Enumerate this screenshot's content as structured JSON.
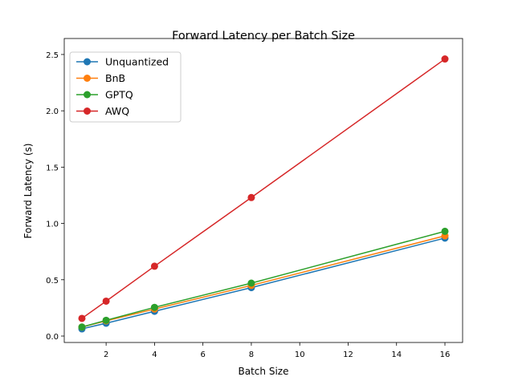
{
  "chart_data": {
    "type": "line",
    "title": "Forward Latency per Batch Size",
    "xlabel": "Batch Size",
    "ylabel": "Forward Latency (s)",
    "xlim": [
      0.27,
      16.73
    ],
    "ylim": [
      -0.057,
      2.642
    ],
    "xticks": [
      2,
      4,
      6,
      8,
      10,
      12,
      14,
      16
    ],
    "yticks": [
      0.0,
      0.5,
      1.0,
      1.5,
      2.0,
      2.5
    ],
    "ytick_labels": [
      "0.0",
      "0.5",
      "1.0",
      "1.5",
      "2.0",
      "2.5"
    ],
    "grid": false,
    "legend_position": "top-left",
    "x": [
      1,
      2,
      4,
      8,
      16
    ],
    "series": [
      {
        "name": "Unquantized",
        "color": "#1f77b4",
        "values": [
          0.064,
          0.114,
          0.22,
          0.43,
          0.87
        ]
      },
      {
        "name": "BnB",
        "color": "#ff7f0e",
        "values": [
          0.08,
          0.135,
          0.24,
          0.45,
          0.89
        ]
      },
      {
        "name": "GPTQ",
        "color": "#2ca02c",
        "values": [
          0.08,
          0.14,
          0.255,
          0.47,
          0.93
        ]
      },
      {
        "name": "AWQ",
        "color": "#d62728",
        "values": [
          0.157,
          0.31,
          0.62,
          1.23,
          2.46
        ]
      }
    ]
  }
}
